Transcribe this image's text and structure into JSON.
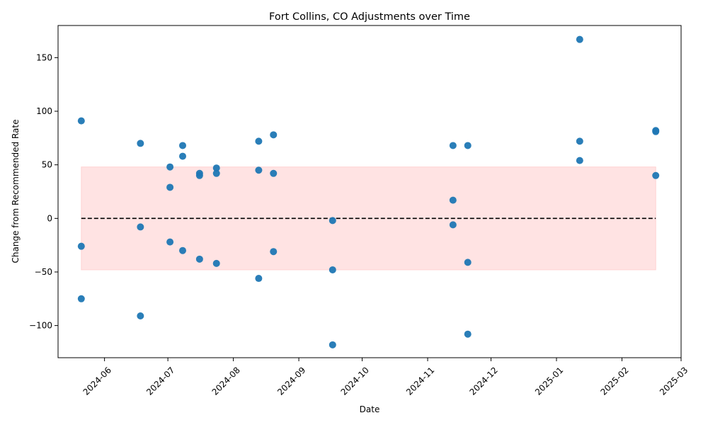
{
  "chart_data": {
    "type": "scatter",
    "title": "Fort Collins, CO Adjustments over Time",
    "xlabel": "Date",
    "ylabel": "Change from Recommended Rate",
    "x_axis_type": "date",
    "xlim": [
      "2024-05-10",
      "2025-03-01"
    ],
    "ylim": [
      -130,
      180
    ],
    "x_ticks": [
      "2024-06-01",
      "2024-07-01",
      "2024-08-01",
      "2024-09-01",
      "2024-10-01",
      "2024-11-01",
      "2024-12-01",
      "2025-01-01",
      "2025-02-01",
      "2025-03-01"
    ],
    "x_tick_labels": [
      "2024-06",
      "2024-07",
      "2024-08",
      "2024-09",
      "2024-10",
      "2024-11",
      "2024-12",
      "2025-01",
      "2025-02",
      "2025-03"
    ],
    "y_ticks": [
      -100,
      -50,
      0,
      50,
      100,
      150
    ],
    "y_tick_labels": [
      "−100",
      "−50",
      "0",
      "50",
      "100",
      "150"
    ],
    "grid": false,
    "point_color": "#1f77b4",
    "reference_line": {
      "y": 0,
      "style": "dashed",
      "color": "#000000"
    },
    "band": {
      "x_start": "2024-05-21",
      "x_end": "2025-02-17",
      "y_min": -48,
      "y_max": 48,
      "color": "#ffcccc"
    },
    "points": [
      {
        "x": "2024-05-21",
        "y": 91
      },
      {
        "x": "2024-05-21",
        "y": -26
      },
      {
        "x": "2024-05-21",
        "y": -75
      },
      {
        "x": "2024-06-18",
        "y": 70
      },
      {
        "x": "2024-06-18",
        "y": -8
      },
      {
        "x": "2024-06-18",
        "y": -91
      },
      {
        "x": "2024-07-02",
        "y": 48
      },
      {
        "x": "2024-07-02",
        "y": 29
      },
      {
        "x": "2024-07-02",
        "y": -22
      },
      {
        "x": "2024-07-08",
        "y": 68
      },
      {
        "x": "2024-07-08",
        "y": 58
      },
      {
        "x": "2024-07-08",
        "y": -30
      },
      {
        "x": "2024-07-16",
        "y": 42
      },
      {
        "x": "2024-07-16",
        "y": 40
      },
      {
        "x": "2024-07-16",
        "y": -38
      },
      {
        "x": "2024-07-24",
        "y": 47
      },
      {
        "x": "2024-07-24",
        "y": 42
      },
      {
        "x": "2024-07-24",
        "y": -42
      },
      {
        "x": "2024-08-13",
        "y": 72
      },
      {
        "x": "2024-08-13",
        "y": 45
      },
      {
        "x": "2024-08-13",
        "y": -56
      },
      {
        "x": "2024-08-20",
        "y": 78
      },
      {
        "x": "2024-08-20",
        "y": 42
      },
      {
        "x": "2024-08-20",
        "y": -31
      },
      {
        "x": "2024-09-17",
        "y": -2
      },
      {
        "x": "2024-09-17",
        "y": -48
      },
      {
        "x": "2024-09-17",
        "y": -118
      },
      {
        "x": "2024-11-13",
        "y": 68
      },
      {
        "x": "2024-11-13",
        "y": 17
      },
      {
        "x": "2024-11-13",
        "y": -6
      },
      {
        "x": "2024-11-20",
        "y": 68
      },
      {
        "x": "2024-11-20",
        "y": -41
      },
      {
        "x": "2024-11-20",
        "y": -108
      },
      {
        "x": "2025-01-12",
        "y": 167
      },
      {
        "x": "2025-01-12",
        "y": 72
      },
      {
        "x": "2025-01-12",
        "y": 54
      },
      {
        "x": "2025-02-17",
        "y": 82
      },
      {
        "x": "2025-02-17",
        "y": 81
      },
      {
        "x": "2025-02-17",
        "y": 40
      }
    ]
  }
}
